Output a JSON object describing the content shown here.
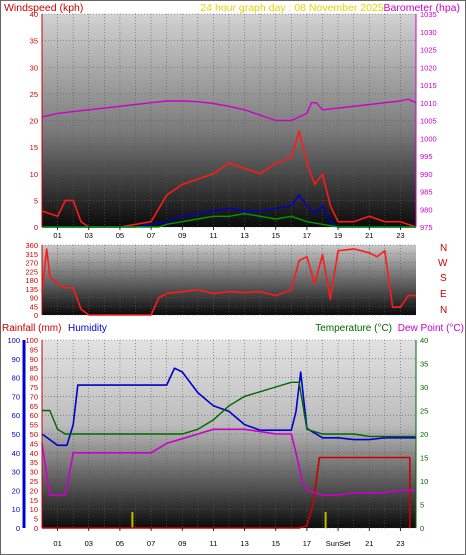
{
  "colors": {
    "wind_axis": "#cc0000",
    "wind_gust": "#ff1a1a",
    "wind_avg": "#0000cc",
    "wind_low": "#009900",
    "baro": "#cc00cc",
    "header_date": "#e6d200",
    "direction": "#ff1a1a",
    "compass": "#cc0000",
    "rain": "#cc0000",
    "humidity": "#0000cc",
    "temperature": "#006600",
    "dew_point": "#cc00cc",
    "sun_marker": "#bbbb00"
  },
  "header": {
    "wind_label": "Windspeed (kph)",
    "date_label": "24 hour graph day : 08 November 2025",
    "baro_label": "Barometer (hpa)"
  },
  "hour_ticks": [
    "01",
    "03",
    "05",
    "07",
    "09",
    "11",
    "13",
    "15",
    "17",
    "19",
    "21",
    "23"
  ],
  "lower_hour_ticks": [
    "01",
    "03",
    "05",
    "07",
    "09",
    "11",
    "13",
    "15",
    "17",
    "SunSet",
    "21",
    "23"
  ],
  "compass_letters": [
    "N",
    "W",
    "S",
    "E",
    "N"
  ],
  "lower_header": {
    "rain_label": "Rainfall (mm)",
    "humidity_label": "Humidity",
    "temp_label": "Temperature (°C)",
    "dew_label": "Dew Point (°C)"
  },
  "chart_data": [
    {
      "type": "line",
      "name": "wind-barometer",
      "x_range": [
        0,
        24
      ],
      "wind_axis": {
        "min": 0,
        "max": 40,
        "ticks": [
          0,
          5,
          10,
          15,
          20,
          25,
          30,
          35,
          40
        ]
      },
      "baro_axis": {
        "min": 975,
        "max": 1035,
        "ticks": [
          975,
          980,
          985,
          990,
          995,
          1000,
          1005,
          1010,
          1015,
          1020,
          1025,
          1030,
          1035
        ]
      },
      "series": [
        {
          "key": "barometer",
          "x": [
            0,
            1,
            2,
            3,
            4,
            5,
            6,
            7,
            8,
            9,
            10,
            11,
            12,
            13,
            14,
            15,
            16,
            16.5,
            17,
            17.3,
            17.6,
            18,
            19,
            20,
            21,
            22,
            23,
            23.5,
            24
          ],
          "y": [
            1006,
            1007,
            1007.5,
            1008,
            1008.5,
            1009,
            1009.5,
            1010,
            1010.5,
            1010.5,
            1010.3,
            1009.8,
            1009,
            1008,
            1006.5,
            1005,
            1005,
            1006,
            1007,
            1010,
            1010,
            1008,
            1008.5,
            1009,
            1009.5,
            1010,
            1010.5,
            1011,
            1010
          ]
        },
        {
          "key": "wind_gust",
          "x": [
            0,
            1,
            1.5,
            2,
            2.5,
            3,
            5,
            7,
            8,
            9,
            10,
            11,
            12,
            13,
            14,
            15,
            16,
            16.5,
            17,
            17.5,
            18,
            18.5,
            19,
            20,
            21,
            22,
            23,
            24
          ],
          "y": [
            3,
            2,
            5,
            5,
            1,
            0,
            0,
            1,
            6,
            8,
            9,
            10,
            12,
            11,
            10,
            12,
            13,
            18,
            12,
            8,
            10,
            4,
            1,
            1,
            2,
            1,
            1,
            0
          ]
        },
        {
          "key": "wind_avg",
          "x": [
            0,
            2,
            6,
            8,
            9,
            10,
            11,
            12,
            13,
            14,
            15,
            16,
            16.5,
            17,
            17.5,
            18,
            18.5,
            19,
            24
          ],
          "y": [
            0,
            0,
            0,
            1,
            2,
            2.5,
            3,
            3.5,
            3,
            3,
            3.5,
            4,
            6,
            4,
            2.5,
            4,
            1,
            0,
            0
          ]
        },
        {
          "key": "wind_low",
          "x": [
            0,
            7.5,
            8,
            9,
            10,
            11,
            12,
            13,
            14,
            15,
            16,
            17,
            18,
            19,
            24
          ],
          "y": [
            0,
            0,
            0.5,
            1,
            1.5,
            2,
            2,
            2.5,
            2,
            1.5,
            2,
            1,
            0.5,
            0,
            0
          ]
        }
      ]
    },
    {
      "type": "line",
      "name": "wind-direction",
      "x_range": [
        0,
        24
      ],
      "axis": {
        "min": 0,
        "max": 360,
        "ticks": [
          0,
          45,
          90,
          135,
          180,
          225,
          270,
          315,
          360
        ]
      },
      "series": [
        {
          "key": "direction",
          "x": [
            0,
            0.3,
            0.5,
            1,
            1.5,
            2,
            2.5,
            3,
            7,
            7.5,
            8,
            9,
            10,
            11,
            12,
            13,
            14,
            15,
            16,
            16.5,
            17,
            17.5,
            18,
            18.5,
            19,
            20,
            21,
            21.5,
            22,
            22.5,
            23,
            23.5,
            24
          ],
          "y": [
            120,
            340,
            200,
            160,
            140,
            140,
            30,
            0,
            0,
            90,
            110,
            120,
            130,
            110,
            120,
            115,
            120,
            100,
            130,
            280,
            300,
            160,
            310,
            80,
            330,
            340,
            320,
            300,
            330,
            40,
            40,
            100,
            100
          ]
        }
      ]
    },
    {
      "type": "line",
      "name": "rain-humidity-temperature",
      "x_range": [
        0,
        24
      ],
      "rain_axis": {
        "min": 0,
        "max": 100,
        "ticks": [
          0,
          10,
          20,
          30,
          40,
          50,
          60,
          70,
          80,
          90,
          100
        ]
      },
      "humidity_axis": {
        "min": 0,
        "max": 100,
        "ticks": [
          0,
          5,
          10,
          15,
          20,
          25,
          30,
          35,
          40,
          45,
          50,
          55,
          60,
          65,
          70,
          75,
          80,
          85,
          90,
          95,
          100
        ]
      },
      "temp_axis": {
        "min": 0,
        "max": 40,
        "ticks": [
          0,
          5,
          10,
          15,
          20,
          25,
          30,
          35,
          40
        ]
      },
      "sun_markers": [
        5.8,
        18.2
      ],
      "series": [
        {
          "key": "rainfall",
          "x": [
            0,
            16.5,
            17,
            17.4,
            17.8,
            23.6,
            23.6
          ],
          "y": [
            0,
            0,
            0.5,
            5,
            15,
            15,
            0
          ]
        },
        {
          "key": "humidity",
          "x": [
            0,
            0.5,
            1,
            1.6,
            2,
            2.3,
            5,
            7,
            8,
            8.5,
            9,
            10,
            11,
            12,
            13,
            14,
            15,
            15.5,
            16,
            16.3,
            16.6,
            17,
            18,
            19,
            20,
            21,
            22,
            23,
            24
          ],
          "y": [
            50,
            47,
            44,
            44,
            55,
            76,
            76,
            76,
            76,
            85,
            83,
            72,
            65,
            62,
            55,
            52,
            52,
            52,
            52,
            62,
            83,
            53,
            48,
            48,
            47,
            47,
            48,
            48,
            48
          ]
        },
        {
          "key": "temperature",
          "x": [
            0,
            0.5,
            1,
            1.5,
            2,
            5,
            7,
            8,
            9,
            10,
            11,
            12,
            13,
            14,
            15,
            16,
            16.5,
            17,
            18,
            19,
            20,
            21,
            22,
            23,
            24
          ],
          "y": [
            25,
            25,
            21,
            20,
            20,
            20,
            20,
            20,
            20,
            21,
            23,
            26,
            28,
            29,
            30,
            31,
            31,
            21,
            20,
            20,
            20,
            19.5,
            19.5,
            19.5,
            19.5
          ]
        },
        {
          "key": "dew_point",
          "x": [
            0,
            0.5,
            1,
            1.5,
            2,
            4,
            6,
            7,
            8,
            9,
            10,
            11,
            12,
            13,
            14,
            15,
            16,
            16.3,
            16.7,
            17,
            18,
            19,
            20,
            21,
            22,
            23,
            24
          ],
          "y": [
            18,
            7,
            7,
            7,
            16,
            16,
            16,
            16,
            18,
            19,
            20,
            21,
            21,
            21,
            20.5,
            20,
            20,
            16,
            10,
            8,
            7,
            7,
            7.5,
            7.5,
            7.5,
            8,
            8
          ]
        }
      ]
    }
  ]
}
